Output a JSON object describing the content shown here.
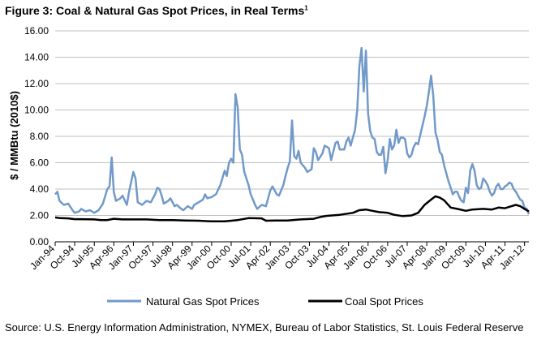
{
  "chart_data": {
    "type": "line",
    "title": "Figure 3: Coal & Natural Gas Spot Prices, in Real Terms",
    "title_superscript": "1",
    "ylabel": "$ / MMBtu (2010$)",
    "xlabel": "",
    "ylim": [
      0,
      16
    ],
    "yticks": [
      "0.00",
      "2.00",
      "4.00",
      "6.00",
      "8.00",
      "10.00",
      "12.00",
      "14.00",
      "16.00"
    ],
    "grid": "horizontal",
    "legend_position": "bottom",
    "x_range": [
      "1994-01",
      "2012-03"
    ],
    "xticks": [
      {
        "label": "Jan-94",
        "date": "1994-01"
      },
      {
        "label": "Oct-94",
        "date": "1994-10"
      },
      {
        "label": "Jul-95",
        "date": "1995-07"
      },
      {
        "label": "Apr-96",
        "date": "1996-04"
      },
      {
        "label": "Jan-97",
        "date": "1997-01"
      },
      {
        "label": "Oct-97",
        "date": "1997-10"
      },
      {
        "label": "Jul-98",
        "date": "1998-07"
      },
      {
        "label": "Apr-99",
        "date": "1999-04"
      },
      {
        "label": "Jan-00",
        "date": "2000-01"
      },
      {
        "label": "Oct-00",
        "date": "2000-10"
      },
      {
        "label": "Jul-01",
        "date": "2001-07"
      },
      {
        "label": "Apr-02",
        "date": "2002-04"
      },
      {
        "label": "Jan-03",
        "date": "2003-01"
      },
      {
        "label": "Oct-03",
        "date": "2003-10"
      },
      {
        "label": "Jul-04",
        "date": "2004-07"
      },
      {
        "label": "Apr-05",
        "date": "2005-04"
      },
      {
        "label": "Jan-06",
        "date": "2006-01"
      },
      {
        "label": "Oct-06",
        "date": "2006-10"
      },
      {
        "label": "Jul-07",
        "date": "2007-07"
      },
      {
        "label": "Apr-08",
        "date": "2008-04"
      },
      {
        "label": "Jan-09",
        "date": "2009-01"
      },
      {
        "label": "Oct-09",
        "date": "2009-10"
      },
      {
        "label": "Jul-10",
        "date": "2010-07"
      },
      {
        "label": "Apr-11",
        "date": "2011-04"
      },
      {
        "label": "Jan-12",
        "date": "2012-01"
      }
    ],
    "series": [
      {
        "name": "Natural Gas Spot Prices",
        "color": "#7199c9",
        "points": [
          [
            "1994-01",
            3.6
          ],
          [
            "1994-02",
            3.8
          ],
          [
            "1994-03",
            3.1
          ],
          [
            "1994-05",
            2.8
          ],
          [
            "1994-07",
            2.9
          ],
          [
            "1994-09",
            2.4
          ],
          [
            "1994-10",
            2.2
          ],
          [
            "1994-12",
            2.3
          ],
          [
            "1995-01",
            2.5
          ],
          [
            "1995-03",
            2.3
          ],
          [
            "1995-05",
            2.4
          ],
          [
            "1995-07",
            2.2
          ],
          [
            "1995-09",
            2.4
          ],
          [
            "1995-11",
            2.9
          ],
          [
            "1996-01",
            4.0
          ],
          [
            "1996-02",
            4.2
          ],
          [
            "1996-03",
            6.4
          ],
          [
            "1996-04",
            3.8
          ],
          [
            "1996-05",
            3.1
          ],
          [
            "1996-07",
            3.3
          ],
          [
            "1996-08",
            3.5
          ],
          [
            "1996-10",
            2.8
          ],
          [
            "1996-11",
            3.8
          ],
          [
            "1997-01",
            5.3
          ],
          [
            "1997-02",
            4.8
          ],
          [
            "1997-03",
            3.0
          ],
          [
            "1997-05",
            2.8
          ],
          [
            "1997-07",
            3.1
          ],
          [
            "1997-09",
            3.0
          ],
          [
            "1997-11",
            3.6
          ],
          [
            "1997-12",
            4.1
          ],
          [
            "1998-01",
            4.0
          ],
          [
            "1998-02",
            3.5
          ],
          [
            "1998-03",
            2.9
          ],
          [
            "1998-05",
            3.1
          ],
          [
            "1998-06",
            3.3
          ],
          [
            "1998-08",
            2.7
          ],
          [
            "1998-09",
            2.8
          ],
          [
            "1998-11",
            2.5
          ],
          [
            "1998-12",
            2.4
          ],
          [
            "1999-02",
            2.7
          ],
          [
            "1999-04",
            2.5
          ],
          [
            "1999-05",
            2.8
          ],
          [
            "1999-07",
            3.0
          ],
          [
            "1999-09",
            3.2
          ],
          [
            "1999-10",
            3.6
          ],
          [
            "1999-11",
            3.3
          ],
          [
            "2000-01",
            3.4
          ],
          [
            "2000-03",
            3.6
          ],
          [
            "2000-05",
            4.3
          ],
          [
            "2000-07",
            5.4
          ],
          [
            "2000-08",
            5.0
          ],
          [
            "2000-09",
            6.0
          ],
          [
            "2000-10",
            6.3
          ],
          [
            "2000-11",
            6.0
          ],
          [
            "2000-12",
            11.2
          ],
          [
            "2001-01",
            10.2
          ],
          [
            "2001-02",
            7.0
          ],
          [
            "2001-03",
            6.6
          ],
          [
            "2001-04",
            5.3
          ],
          [
            "2001-06",
            4.3
          ],
          [
            "2001-07",
            3.6
          ],
          [
            "2001-09",
            2.8
          ],
          [
            "2001-10",
            2.5
          ],
          [
            "2001-12",
            2.8
          ],
          [
            "2002-02",
            2.7
          ],
          [
            "2002-04",
            3.9
          ],
          [
            "2002-05",
            4.2
          ],
          [
            "2002-07",
            3.6
          ],
          [
            "2002-08",
            3.5
          ],
          [
            "2002-10",
            4.3
          ],
          [
            "2002-11",
            5.0
          ],
          [
            "2002-12",
            5.6
          ],
          [
            "2003-01",
            6.1
          ],
          [
            "2003-02",
            9.2
          ],
          [
            "2003-03",
            6.5
          ],
          [
            "2003-04",
            6.3
          ],
          [
            "2003-05",
            6.9
          ],
          [
            "2003-06",
            6.0
          ],
          [
            "2003-08",
            5.6
          ],
          [
            "2003-09",
            5.3
          ],
          [
            "2003-11",
            5.5
          ],
          [
            "2003-12",
            7.1
          ],
          [
            "2004-01",
            6.8
          ],
          [
            "2004-02",
            6.2
          ],
          [
            "2004-04",
            6.7
          ],
          [
            "2004-05",
            7.3
          ],
          [
            "2004-07",
            7.1
          ],
          [
            "2004-08",
            6.2
          ],
          [
            "2004-10",
            7.5
          ],
          [
            "2004-11",
            7.6
          ],
          [
            "2004-12",
            7.0
          ],
          [
            "2005-02",
            7.0
          ],
          [
            "2005-03",
            7.6
          ],
          [
            "2005-04",
            7.9
          ],
          [
            "2005-05",
            7.3
          ],
          [
            "2005-06",
            7.9
          ],
          [
            "2005-07",
            8.5
          ],
          [
            "2005-08",
            10.0
          ],
          [
            "2005-09",
            13.3
          ],
          [
            "2005-10",
            14.7
          ],
          [
            "2005-11",
            11.4
          ],
          [
            "2005-12",
            14.5
          ],
          [
            "2006-01",
            9.7
          ],
          [
            "2006-02",
            8.4
          ],
          [
            "2006-03",
            7.9
          ],
          [
            "2006-04",
            7.8
          ],
          [
            "2006-05",
            6.8
          ],
          [
            "2006-06",
            6.6
          ],
          [
            "2006-07",
            6.6
          ],
          [
            "2006-08",
            7.2
          ],
          [
            "2006-09",
            5.2
          ],
          [
            "2006-10",
            6.2
          ],
          [
            "2006-11",
            7.8
          ],
          [
            "2006-12",
            7.0
          ],
          [
            "2007-01",
            7.3
          ],
          [
            "2007-02",
            8.5
          ],
          [
            "2007-03",
            7.5
          ],
          [
            "2007-04",
            7.9
          ],
          [
            "2007-05",
            7.9
          ],
          [
            "2007-06",
            7.8
          ],
          [
            "2007-07",
            6.7
          ],
          [
            "2007-08",
            6.4
          ],
          [
            "2007-09",
            6.6
          ],
          [
            "2007-10",
            7.2
          ],
          [
            "2007-11",
            7.5
          ],
          [
            "2007-12",
            7.4
          ],
          [
            "2008-02",
            8.8
          ],
          [
            "2008-03",
            9.5
          ],
          [
            "2008-04",
            10.3
          ],
          [
            "2008-05",
            11.4
          ],
          [
            "2008-06",
            12.6
          ],
          [
            "2008-07",
            11.1
          ],
          [
            "2008-08",
            8.3
          ],
          [
            "2008-09",
            7.7
          ],
          [
            "2008-10",
            6.8
          ],
          [
            "2008-11",
            6.6
          ],
          [
            "2008-12",
            5.8
          ],
          [
            "2009-02",
            4.6
          ],
          [
            "2009-03",
            4.1
          ],
          [
            "2009-04",
            3.6
          ],
          [
            "2009-05",
            3.8
          ],
          [
            "2009-06",
            3.8
          ],
          [
            "2009-07",
            3.4
          ],
          [
            "2009-08",
            3.1
          ],
          [
            "2009-09",
            3.0
          ],
          [
            "2009-10",
            4.1
          ],
          [
            "2009-11",
            3.7
          ],
          [
            "2009-12",
            5.4
          ],
          [
            "2010-01",
            5.9
          ],
          [
            "2010-02",
            5.4
          ],
          [
            "2010-03",
            4.3
          ],
          [
            "2010-04",
            4.0
          ],
          [
            "2010-05",
            4.1
          ],
          [
            "2010-06",
            4.8
          ],
          [
            "2010-07",
            4.6
          ],
          [
            "2010-08",
            4.3
          ],
          [
            "2010-09",
            3.8
          ],
          [
            "2010-10",
            3.5
          ],
          [
            "2010-11",
            3.7
          ],
          [
            "2010-12",
            4.2
          ],
          [
            "2011-01",
            4.4
          ],
          [
            "2011-02",
            4.0
          ],
          [
            "2011-03",
            4.0
          ],
          [
            "2011-04",
            4.2
          ],
          [
            "2011-05",
            4.3
          ],
          [
            "2011-06",
            4.5
          ],
          [
            "2011-07",
            4.4
          ],
          [
            "2011-08",
            4.0
          ],
          [
            "2011-09",
            3.8
          ],
          [
            "2011-10",
            3.5
          ],
          [
            "2011-11",
            3.2
          ],
          [
            "2011-12",
            3.1
          ],
          [
            "2012-01",
            2.6
          ],
          [
            "2012-02",
            2.5
          ],
          [
            "2012-03",
            2.1
          ]
        ]
      },
      {
        "name": "Coal Spot Prices",
        "color": "#000000",
        "points": [
          [
            "1994-01",
            1.85
          ],
          [
            "1994-03",
            1.8
          ],
          [
            "1994-07",
            1.78
          ],
          [
            "1994-10",
            1.72
          ],
          [
            "1995-01",
            1.72
          ],
          [
            "1995-07",
            1.7
          ],
          [
            "1995-10",
            1.65
          ],
          [
            "1996-01",
            1.65
          ],
          [
            "1996-04",
            1.75
          ],
          [
            "1996-08",
            1.7
          ],
          [
            "1997-01",
            1.7
          ],
          [
            "1997-07",
            1.7
          ],
          [
            "1998-01",
            1.65
          ],
          [
            "1998-07",
            1.65
          ],
          [
            "1999-01",
            1.62
          ],
          [
            "1999-07",
            1.6
          ],
          [
            "2000-01",
            1.55
          ],
          [
            "2000-07",
            1.55
          ],
          [
            "2001-01",
            1.65
          ],
          [
            "2001-06",
            1.8
          ],
          [
            "2001-12",
            1.78
          ],
          [
            "2002-02",
            1.6
          ],
          [
            "2002-06",
            1.62
          ],
          [
            "2002-12",
            1.62
          ],
          [
            "2003-06",
            1.7
          ],
          [
            "2003-12",
            1.75
          ],
          [
            "2004-03",
            1.88
          ],
          [
            "2004-06",
            1.97
          ],
          [
            "2004-12",
            2.05
          ],
          [
            "2005-06",
            2.2
          ],
          [
            "2005-09",
            2.4
          ],
          [
            "2005-12",
            2.45
          ],
          [
            "2006-03",
            2.35
          ],
          [
            "2006-06",
            2.25
          ],
          [
            "2006-10",
            2.2
          ],
          [
            "2007-01",
            2.05
          ],
          [
            "2007-05",
            1.95
          ],
          [
            "2007-09",
            2.0
          ],
          [
            "2007-12",
            2.2
          ],
          [
            "2008-03",
            2.8
          ],
          [
            "2008-06",
            3.2
          ],
          [
            "2008-08",
            3.45
          ],
          [
            "2008-10",
            3.35
          ],
          [
            "2008-12",
            3.15
          ],
          [
            "2009-03",
            2.6
          ],
          [
            "2009-06",
            2.5
          ],
          [
            "2009-10",
            2.35
          ],
          [
            "2010-01",
            2.45
          ],
          [
            "2010-06",
            2.5
          ],
          [
            "2010-10",
            2.45
          ],
          [
            "2011-01",
            2.6
          ],
          [
            "2011-04",
            2.55
          ],
          [
            "2011-07",
            2.7
          ],
          [
            "2011-09",
            2.8
          ],
          [
            "2011-11",
            2.7
          ],
          [
            "2012-01",
            2.5
          ],
          [
            "2012-03",
            2.3
          ]
        ]
      }
    ]
  },
  "source_note": "Source: U.S. Energy Information Administration, NYMEX, Bureau of Labor Statistics, St. Louis Federal Reserve"
}
